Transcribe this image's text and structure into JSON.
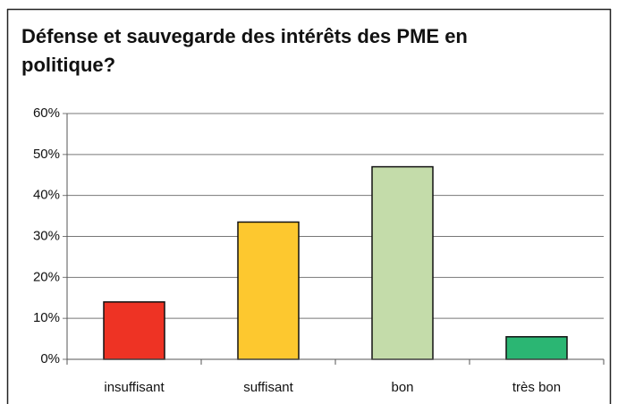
{
  "chart_data": {
    "type": "bar",
    "title_lines": [
      "Défense et sauvegarde des intérêts des PME en",
      "politique?"
    ],
    "categories": [
      "insuffisant",
      "suffisant",
      "bon",
      "très bon"
    ],
    "values": [
      14,
      33.5,
      47,
      5.5
    ],
    "colors": [
      "#ee3324",
      "#fdc82f",
      "#c4dcaa",
      "#2bb673"
    ],
    "ylim": [
      0,
      60
    ],
    "yticks": [
      {
        "value": 0,
        "label": "0%"
      },
      {
        "value": 10,
        "label": "10%"
      },
      {
        "value": 20,
        "label": "20%"
      },
      {
        "value": 30,
        "label": "30%"
      },
      {
        "value": 40,
        "label": "40%"
      },
      {
        "value": 50,
        "label": "50%"
      },
      {
        "value": 60,
        "label": "60%"
      }
    ],
    "grid": true
  }
}
